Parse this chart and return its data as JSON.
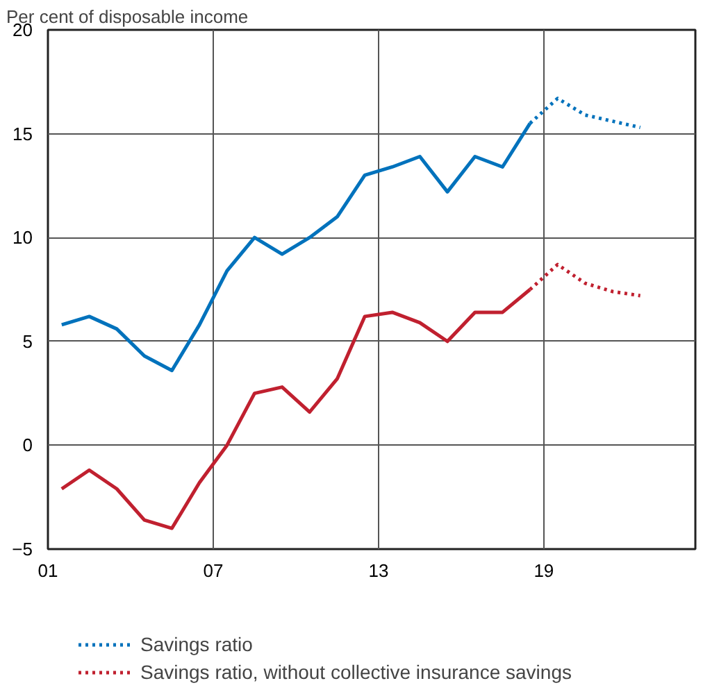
{
  "chart_data": {
    "type": "line",
    "subtitle": "Per cent of disposable income",
    "series": [
      {
        "color": "#0072bc",
        "line_style": "solid",
        "x": [
          2001.5,
          2002.5,
          2003.5,
          2004.5,
          2005.5,
          2006.5,
          2007.5,
          2008.5,
          2009.5,
          2010.5,
          2011.5,
          2012.5,
          2013.5,
          2014.5,
          2015.5,
          2016.5,
          2017.5,
          2018.5
        ],
        "values": [
          5.8,
          6.2,
          5.6,
          4.3,
          3.6,
          5.8,
          8.4,
          10.0,
          9.2,
          10.0,
          11.0,
          13.0,
          13.4,
          13.9,
          12.2,
          13.9,
          13.4,
          15.5
        ]
      },
      {
        "name": "Savings ratio",
        "color": "#0072bc",
        "line_style": "dotted",
        "x": [
          2018.5,
          2019.5,
          2020.5,
          2021.5,
          2022.5
        ],
        "values": [
          15.5,
          16.7,
          15.9,
          15.6,
          15.3
        ]
      },
      {
        "color": "#c0202f",
        "line_style": "solid",
        "x": [
          2001.5,
          2002.5,
          2003.5,
          2004.5,
          2005.5,
          2006.5,
          2007.5,
          2008.5,
          2009.5,
          2010.5,
          2011.5,
          2012.5,
          2013.5,
          2014.5,
          2015.5,
          2016.5,
          2017.5,
          2018.5
        ],
        "values": [
          -2.1,
          -1.2,
          -2.1,
          -3.6,
          -4.0,
          -1.8,
          0.0,
          2.5,
          2.8,
          1.6,
          3.2,
          6.2,
          6.4,
          5.9,
          5.0,
          6.4,
          6.4,
          7.5
        ]
      },
      {
        "name": "Savings ratio, without collective insurance savings",
        "color": "#c0202f",
        "line_style": "dotted",
        "x": [
          2018.5,
          2019.5,
          2020.5,
          2021.5,
          2022.5
        ],
        "values": [
          7.5,
          8.7,
          7.8,
          7.4,
          7.2
        ]
      }
    ],
    "xlim": [
      2001,
      2024.5
    ],
    "xticks": [
      {
        "value": 2001,
        "label": "01"
      },
      {
        "value": 2007,
        "label": "07"
      },
      {
        "value": 2013,
        "label": "13"
      },
      {
        "value": 2019,
        "label": "19"
      }
    ],
    "ylim": [
      -5,
      20
    ],
    "yticks": [
      -5,
      0,
      5,
      10,
      15,
      20
    ],
    "grid": true,
    "legend": "bottom",
    "marker": "none"
  }
}
